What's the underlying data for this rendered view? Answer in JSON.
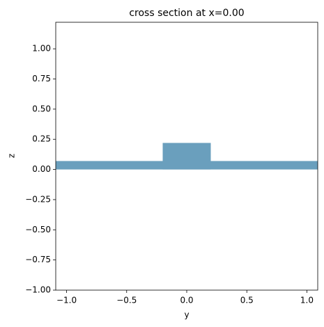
{
  "chart_data": {
    "type": "rects",
    "title": "cross section at x=0.00",
    "x_label": "y",
    "y_label": "z",
    "color": "#6a9fbd",
    "rects": [
      {
        "y": [
          -1.09,
          1.09
        ],
        "z": [
          0,
          0.07
        ]
      },
      {
        "y": [
          -0.2,
          0.2
        ],
        "z": [
          0,
          0.22
        ]
      }
    ],
    "xlim": [
      -1.09,
      1.09
    ],
    "ylim": [
      -1.0,
      1.22
    ],
    "xticks": [
      {
        "value": -1.0,
        "label": "−1.0"
      },
      {
        "value": -0.5,
        "label": "−0.5"
      },
      {
        "value": 0,
        "label": "0.0"
      },
      {
        "value": 0.5,
        "label": "0.5"
      },
      {
        "value": 1.0,
        "label": "1.0"
      }
    ],
    "yticks": [
      {
        "value": -1.0,
        "label": "−1.00"
      },
      {
        "value": -0.75,
        "label": "−0.75"
      },
      {
        "value": -0.5,
        "label": "−0.50"
      },
      {
        "value": -0.25,
        "label": "−0.25"
      },
      {
        "value": 0,
        "label": "0.00"
      },
      {
        "value": 0.25,
        "label": "0.25"
      },
      {
        "value": 0.5,
        "label": "0.50"
      },
      {
        "value": 0.75,
        "label": "0.75"
      },
      {
        "value": 1.0,
        "label": "1.00"
      }
    ]
  }
}
